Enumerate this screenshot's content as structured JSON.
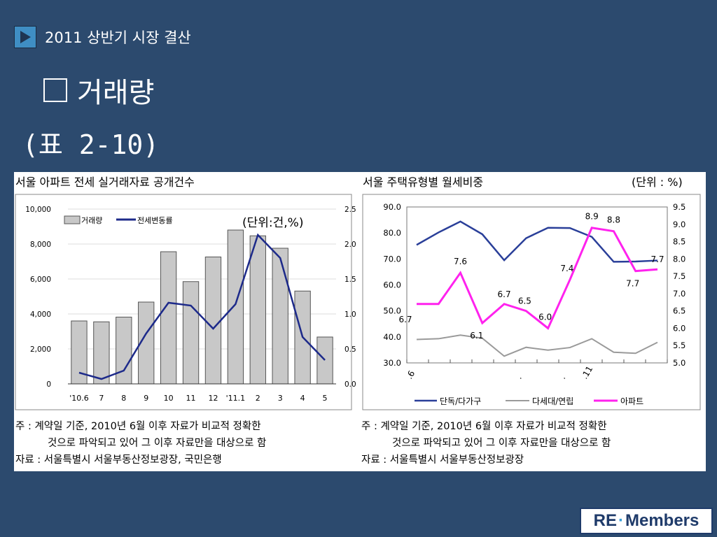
{
  "header": {
    "icon": "play-triangle-icon",
    "text": "2011 상반기 시장 결산"
  },
  "title": {
    "icon": "empty-square-icon",
    "text": "거래량"
  },
  "subtitle": "(표 2-10)",
  "logo": {
    "left": "RE",
    "right": "Members"
  },
  "chart_data": [
    {
      "type": "bar",
      "title": "서울 아파트 전세 실거래자료 공개건수",
      "unit_note": "(단위:건,%)",
      "categories": [
        "'10.6",
        "7",
        "8",
        "9",
        "10",
        "11",
        "12",
        "'11.1",
        "2",
        "3",
        "4",
        "5"
      ],
      "ylim": [
        0,
        10000
      ],
      "y2lim": [
        0,
        2.5
      ],
      "yticks": [
        "10,000",
        "8,000",
        "6,000",
        "4,000",
        "2,000",
        "0"
      ],
      "y2ticks": [
        "2.5",
        "2.0",
        "1.5",
        "1.0",
        "0.5",
        "0.0"
      ],
      "series": [
        {
          "name": "거래량",
          "type": "bar",
          "axis": "left",
          "color": "#c8c8c8",
          "values": [
            3600,
            3550,
            3820,
            4680,
            7560,
            5850,
            7260,
            8800,
            8470,
            7760,
            5310,
            2680
          ]
        },
        {
          "name": "전세변동률",
          "type": "line",
          "axis": "right",
          "color": "#1d2a8a",
          "values": [
            0.16,
            0.07,
            0.19,
            0.72,
            1.16,
            1.12,
            0.79,
            1.14,
            2.13,
            1.8,
            0.67,
            0.34
          ]
        }
      ],
      "notes": [
        "주 :  계약일 기준, 2010년 6월 이후 자료가 비교적 정확한",
        "것으로 파악되고 있어 그 이후 자료만을 대상으로 함",
        "자료 : 서울특별시 서울부동산정보광장, 국민은행"
      ]
    },
    {
      "type": "line",
      "title": "서울 주택유형별 월세비중",
      "unit_note": "(단위 : %)",
      "ylim": [
        30,
        90
      ],
      "y2lim": [
        5.0,
        9.5
      ],
      "yticks": [
        "90.0",
        "80.0",
        "70.0",
        "60.0",
        "50.0",
        "40.0",
        "30.0"
      ],
      "y2ticks": [
        "9.5",
        "9.0",
        "8.5",
        "8.0",
        "7.5",
        "7.0",
        "6.5",
        "6.0",
        "5.5",
        "5.0"
      ],
      "x_labels": [
        ".6",
        ".",
        ".",
        ".11"
      ],
      "series": [
        {
          "name": "단독/다가구",
          "axis": "left",
          "color": "#2a3f99",
          "values": [
            75.4,
            80.2,
            84.4,
            79.5,
            69.5,
            78.0,
            82.0,
            81.9,
            78.5,
            68.9,
            69.0,
            69.4
          ]
        },
        {
          "name": "다세대/연립",
          "axis": "left",
          "color": "#9a9a9a",
          "values": [
            39.0,
            39.3,
            40.7,
            39.5,
            32.6,
            36.0,
            34.9,
            35.9,
            39.3,
            34.1,
            33.7,
            37.9
          ]
        },
        {
          "name": "아파트",
          "axis": "right",
          "color": "#ff22ee",
          "values": [
            6.7,
            6.7,
            7.6,
            6.15,
            6.7,
            6.5,
            6.0,
            7.4,
            8.9,
            8.8,
            7.65,
            7.7
          ]
        }
      ],
      "data_labels": [
        "6.7",
        "7.6",
        "6.1",
        "6.7",
        "6.5",
        "6.0",
        "7.4",
        "8.9",
        "8.8",
        "7.7",
        "7.7"
      ],
      "notes": [
        "주 :  계약일 기준, 2010년 6월 이후 자료가 비교적 정확한",
        "것으로 파악되고 있어 그 이후 자료만을 대상으로 함",
        "자료 : 서울특별시 서울부동산정보광장"
      ]
    }
  ]
}
